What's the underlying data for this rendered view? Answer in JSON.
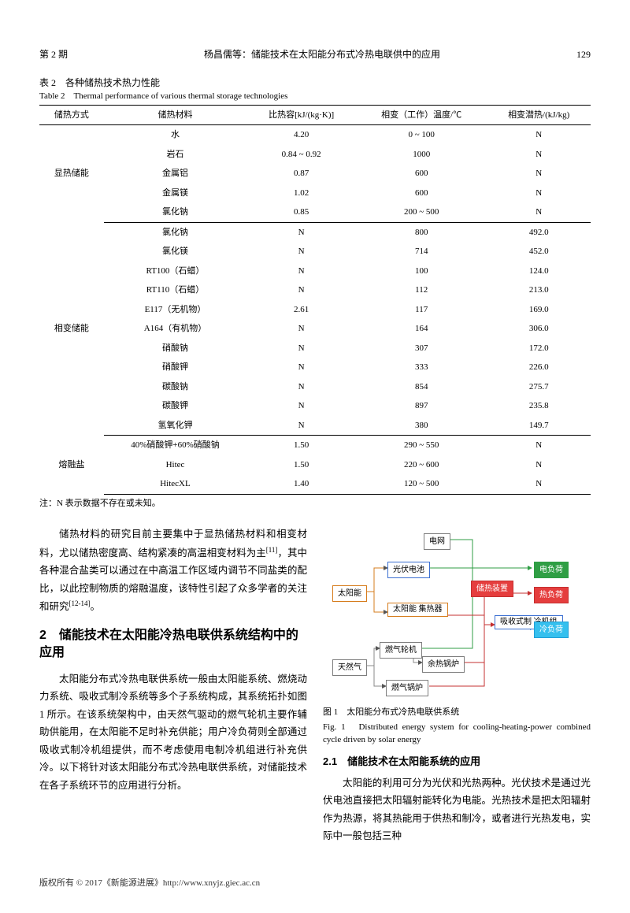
{
  "header": {
    "issue": "第 2 期",
    "title": "杨昌儒等：储能技术在太阳能分布式冷热电联供中的应用",
    "page": "129"
  },
  "table": {
    "caption_cn": "表 2　各种储热技术热力性能",
    "caption_en": "Table 2　Thermal performance of various thermal storage technologies",
    "columns": [
      "储热方式",
      "储热材料",
      "比热容[kJ/(kg·K)]",
      "相变（工作）温度/℃",
      "相变潜热/(kJ/kg)"
    ],
    "groups": [
      {
        "name": "显热储能",
        "rows": [
          [
            "水",
            "4.20",
            "0 ~ 100",
            "N"
          ],
          [
            "岩石",
            "0.84 ~ 0.92",
            "1000",
            "N"
          ],
          [
            "金属铝",
            "0.87",
            "600",
            "N"
          ],
          [
            "金属镁",
            "1.02",
            "600",
            "N"
          ],
          [
            "氯化钠",
            "0.85",
            "200 ~ 500",
            "N"
          ]
        ]
      },
      {
        "name": "相变储能",
        "rows": [
          [
            "氯化钠",
            "N",
            "800",
            "492.0"
          ],
          [
            "氯化镁",
            "N",
            "714",
            "452.0"
          ],
          [
            "RT100（石蜡）",
            "N",
            "100",
            "124.0"
          ],
          [
            "RT110（石蜡）",
            "N",
            "112",
            "213.0"
          ],
          [
            "E117（无机物）",
            "2.61",
            "117",
            "169.0"
          ],
          [
            "A164（有机物）",
            "N",
            "164",
            "306.0"
          ],
          [
            "硝酸钠",
            "N",
            "307",
            "172.0"
          ],
          [
            "硝酸钾",
            "N",
            "333",
            "226.0"
          ],
          [
            "碳酸钠",
            "N",
            "854",
            "275.7"
          ],
          [
            "碳酸钾",
            "N",
            "897",
            "235.8"
          ],
          [
            "氢氧化钾",
            "N",
            "380",
            "149.7"
          ]
        ]
      },
      {
        "name": "熔融盐",
        "rows": [
          [
            "40%硝酸钾+60%硝酸钠",
            "1.50",
            "290 ~ 550",
            "N"
          ],
          [
            "Hitec",
            "1.50",
            "220 ~ 600",
            "N"
          ],
          [
            "HitecXL",
            "1.40",
            "120 ~ 500",
            "N"
          ]
        ]
      }
    ],
    "note": "注：N 表示数据不存在或未知。"
  },
  "left": {
    "p1": "储热材料的研究目前主要集中于显热储热材料和相变材料，尤以储热密度高、结构紧凑的高温相变材料为主",
    "p1_ref": "[11]",
    "p1_tail": "，其中各种混合盐类可以通过在中高温工作区域内调节不同盐类的配比，以此控制物质的熔融温度，该特性引起了众多学者的关注和研究",
    "p1_ref2": "[12-14]",
    "p1_end": "。",
    "h2": "2　储能技术在太阳能冷热电联供系统结构中的应用",
    "p2": "太阳能分布式冷热电联供系统一般由太阳能系统、燃烧动力系统、吸收式制冷系统等多个子系统构成，其系统拓扑如图 1 所示。在该系统架构中，由天然气驱动的燃气轮机主要作辅助供能用，在太阳能不足时补充供能；用户冷负荷则全部通过吸收式制冷机组提供，而不考虑使用电制冷机组进行补充供冷。以下将针对该太阳能分布式冷热电联供系统，对储能技术在各子系统环节的应用进行分析。"
  },
  "diagram": {
    "nodes": {
      "grid": "电网",
      "pv": "光伏电池",
      "sun": "太阳能",
      "collector": "太阳能\n集热器",
      "gas": "燃气轮机",
      "natgas": "天然气",
      "boiler": "燃气锅炉",
      "waste": "余热锅炉",
      "storage": "储热装置",
      "chiller": "吸收式制\n冷机组",
      "eload": "电负荷",
      "hload": "热负荷",
      "cload": "冷负荷"
    },
    "fig_cn": "图 1　太阳能分布式冷热电联供系统",
    "fig_en": "Fig. 1　Distributed energy system for cooling-heating-power combined cycle driven by solar energy"
  },
  "right": {
    "h": "2.1　储能技术在太阳能系统的应用",
    "p": "太阳能的利用可分为光伏和光热两种。光伏技术是通过光伏电池直接把太阳辐射能转化为电能。光热技术是把太阳辐射作为热源，将其热能用于供热和制冷，或者进行光热发电，实际中一般包括三种"
  },
  "footer": "版权所有 © 2017《新能源进展》http://www.xnyjz.giec.ac.cn"
}
